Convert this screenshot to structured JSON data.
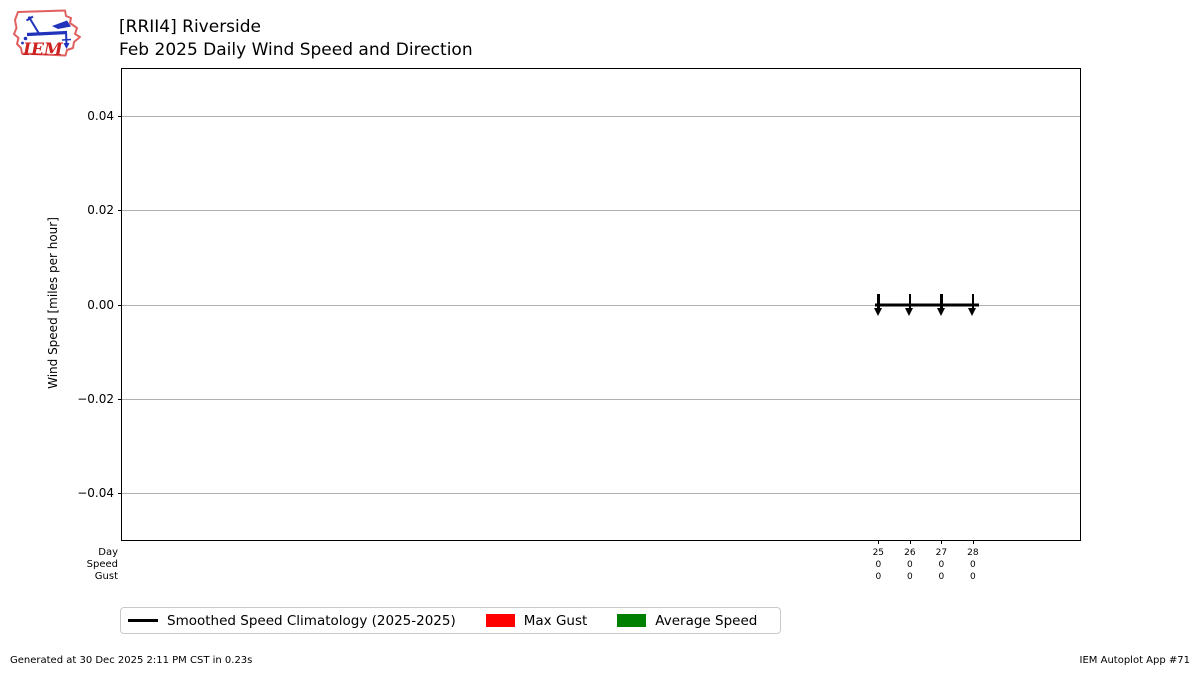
{
  "header": {
    "title_line1": "[RRII4] Riverside",
    "title_line2": "Feb 2025 Daily Wind Speed and Direction",
    "logo_text": "IEM",
    "logo_colors": {
      "outline": "#e06060",
      "vane": "#2233bb",
      "text": "#cc2222"
    }
  },
  "chart_data": {
    "type": "line",
    "title": "[RRII4] Riverside",
    "subtitle": "Feb 2025 Daily Wind Speed and Direction",
    "xlabel": "",
    "ylabel": "Wind Speed [miles per hour]",
    "xlim": [
      1,
      31.4
    ],
    "ylim": [
      -0.05,
      0.05
    ],
    "grid": true,
    "grid_color": "#b0b0b0",
    "yticks": [
      {
        "value": 0.04,
        "label": "0.04"
      },
      {
        "value": 0.02,
        "label": "0.02"
      },
      {
        "value": 0.0,
        "label": "0.00"
      },
      {
        "value": -0.02,
        "label": "−0.02"
      },
      {
        "value": -0.04,
        "label": "−0.04"
      }
    ],
    "x_row_labels": [
      "Day",
      "Speed",
      "Gust"
    ],
    "x_columns": [
      {
        "day": 25,
        "speed": "0",
        "gust": "0"
      },
      {
        "day": 26,
        "speed": "0",
        "gust": "0"
      },
      {
        "day": 27,
        "speed": "0",
        "gust": "0"
      },
      {
        "day": 28,
        "speed": "0",
        "gust": "0"
      }
    ],
    "series": [
      {
        "name": "Smoothed Speed Climatology (2025-2025)",
        "type": "line",
        "color": "#000000",
        "x": [
          24.9,
          28.2
        ],
        "y": [
          0,
          0
        ]
      },
      {
        "name": "Max Gust",
        "type": "bar",
        "color": "#ff0000",
        "x": [
          25,
          26,
          27,
          28
        ],
        "values": [
          0,
          0,
          0,
          0
        ]
      },
      {
        "name": "Average Speed",
        "type": "bar",
        "color": "#008000",
        "x": [
          25,
          26,
          27,
          28
        ],
        "values": [
          0,
          0,
          0,
          0
        ]
      }
    ],
    "wind_arrows": {
      "days": [
        25,
        26,
        27,
        28
      ],
      "y": 0,
      "pointing": "down",
      "color": "#000000"
    },
    "legend_position": "below"
  },
  "legend": {
    "items": [
      {
        "swatch": "line",
        "color": "#000000",
        "label": "Smoothed Speed Climatology (2025-2025)"
      },
      {
        "swatch": "rect",
        "color": "#ff0000",
        "label": "Max Gust"
      },
      {
        "swatch": "rect",
        "color": "#008000",
        "label": "Average Speed"
      }
    ]
  },
  "footer": {
    "left": "Generated at 30 Dec 2025 2:11 PM CST in 0.23s",
    "right": "IEM Autoplot App #71"
  }
}
